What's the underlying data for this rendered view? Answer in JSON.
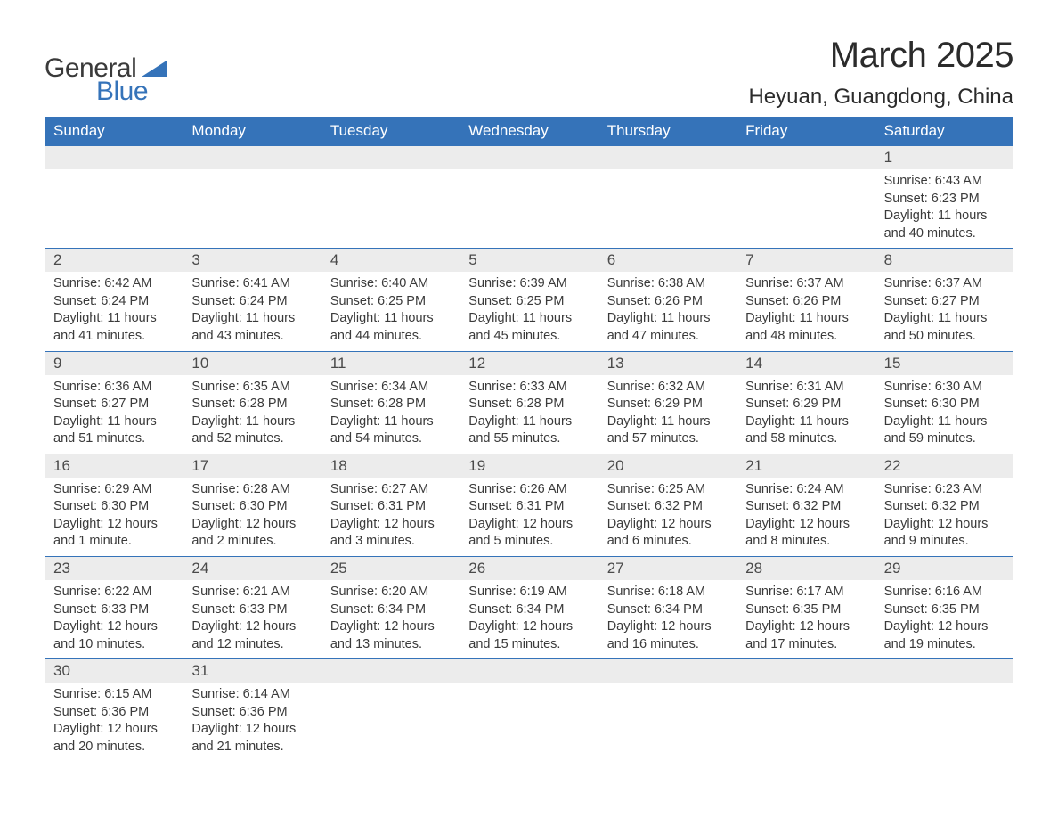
{
  "logo": {
    "word1": "General",
    "word2": "Blue",
    "text_color": "#3a3a3a",
    "accent_color": "#3573b9"
  },
  "title": "March 2025",
  "location": "Heyuan, Guangdong, China",
  "colors": {
    "header_bg": "#3573b9",
    "header_text": "#ffffff",
    "daynum_bg": "#ececec",
    "border": "#3573b9",
    "text": "#3a3a3a",
    "background": "#ffffff"
  },
  "fonts": {
    "title_size_pt": 40,
    "location_size_pt": 24,
    "weekday_size_pt": 17,
    "daynum_size_pt": 17,
    "body_size_pt": 14.5
  },
  "grid": {
    "columns": 7,
    "rows": 6
  },
  "weekdays": [
    "Sunday",
    "Monday",
    "Tuesday",
    "Wednesday",
    "Thursday",
    "Friday",
    "Saturday"
  ],
  "weeks": [
    [
      {
        "empty": true
      },
      {
        "empty": true
      },
      {
        "empty": true
      },
      {
        "empty": true
      },
      {
        "empty": true
      },
      {
        "empty": true
      },
      {
        "n": "1",
        "sunrise": "Sunrise: 6:43 AM",
        "sunset": "Sunset: 6:23 PM",
        "dl1": "Daylight: 11 hours",
        "dl2": "and 40 minutes."
      }
    ],
    [
      {
        "n": "2",
        "sunrise": "Sunrise: 6:42 AM",
        "sunset": "Sunset: 6:24 PM",
        "dl1": "Daylight: 11 hours",
        "dl2": "and 41 minutes."
      },
      {
        "n": "3",
        "sunrise": "Sunrise: 6:41 AM",
        "sunset": "Sunset: 6:24 PM",
        "dl1": "Daylight: 11 hours",
        "dl2": "and 43 minutes."
      },
      {
        "n": "4",
        "sunrise": "Sunrise: 6:40 AM",
        "sunset": "Sunset: 6:25 PM",
        "dl1": "Daylight: 11 hours",
        "dl2": "and 44 minutes."
      },
      {
        "n": "5",
        "sunrise": "Sunrise: 6:39 AM",
        "sunset": "Sunset: 6:25 PM",
        "dl1": "Daylight: 11 hours",
        "dl2": "and 45 minutes."
      },
      {
        "n": "6",
        "sunrise": "Sunrise: 6:38 AM",
        "sunset": "Sunset: 6:26 PM",
        "dl1": "Daylight: 11 hours",
        "dl2": "and 47 minutes."
      },
      {
        "n": "7",
        "sunrise": "Sunrise: 6:37 AM",
        "sunset": "Sunset: 6:26 PM",
        "dl1": "Daylight: 11 hours",
        "dl2": "and 48 minutes."
      },
      {
        "n": "8",
        "sunrise": "Sunrise: 6:37 AM",
        "sunset": "Sunset: 6:27 PM",
        "dl1": "Daylight: 11 hours",
        "dl2": "and 50 minutes."
      }
    ],
    [
      {
        "n": "9",
        "sunrise": "Sunrise: 6:36 AM",
        "sunset": "Sunset: 6:27 PM",
        "dl1": "Daylight: 11 hours",
        "dl2": "and 51 minutes."
      },
      {
        "n": "10",
        "sunrise": "Sunrise: 6:35 AM",
        "sunset": "Sunset: 6:28 PM",
        "dl1": "Daylight: 11 hours",
        "dl2": "and 52 minutes."
      },
      {
        "n": "11",
        "sunrise": "Sunrise: 6:34 AM",
        "sunset": "Sunset: 6:28 PM",
        "dl1": "Daylight: 11 hours",
        "dl2": "and 54 minutes."
      },
      {
        "n": "12",
        "sunrise": "Sunrise: 6:33 AM",
        "sunset": "Sunset: 6:28 PM",
        "dl1": "Daylight: 11 hours",
        "dl2": "and 55 minutes."
      },
      {
        "n": "13",
        "sunrise": "Sunrise: 6:32 AM",
        "sunset": "Sunset: 6:29 PM",
        "dl1": "Daylight: 11 hours",
        "dl2": "and 57 minutes."
      },
      {
        "n": "14",
        "sunrise": "Sunrise: 6:31 AM",
        "sunset": "Sunset: 6:29 PM",
        "dl1": "Daylight: 11 hours",
        "dl2": "and 58 minutes."
      },
      {
        "n": "15",
        "sunrise": "Sunrise: 6:30 AM",
        "sunset": "Sunset: 6:30 PM",
        "dl1": "Daylight: 11 hours",
        "dl2": "and 59 minutes."
      }
    ],
    [
      {
        "n": "16",
        "sunrise": "Sunrise: 6:29 AM",
        "sunset": "Sunset: 6:30 PM",
        "dl1": "Daylight: 12 hours",
        "dl2": "and 1 minute."
      },
      {
        "n": "17",
        "sunrise": "Sunrise: 6:28 AM",
        "sunset": "Sunset: 6:30 PM",
        "dl1": "Daylight: 12 hours",
        "dl2": "and 2 minutes."
      },
      {
        "n": "18",
        "sunrise": "Sunrise: 6:27 AM",
        "sunset": "Sunset: 6:31 PM",
        "dl1": "Daylight: 12 hours",
        "dl2": "and 3 minutes."
      },
      {
        "n": "19",
        "sunrise": "Sunrise: 6:26 AM",
        "sunset": "Sunset: 6:31 PM",
        "dl1": "Daylight: 12 hours",
        "dl2": "and 5 minutes."
      },
      {
        "n": "20",
        "sunrise": "Sunrise: 6:25 AM",
        "sunset": "Sunset: 6:32 PM",
        "dl1": "Daylight: 12 hours",
        "dl2": "and 6 minutes."
      },
      {
        "n": "21",
        "sunrise": "Sunrise: 6:24 AM",
        "sunset": "Sunset: 6:32 PM",
        "dl1": "Daylight: 12 hours",
        "dl2": "and 8 minutes."
      },
      {
        "n": "22",
        "sunrise": "Sunrise: 6:23 AM",
        "sunset": "Sunset: 6:32 PM",
        "dl1": "Daylight: 12 hours",
        "dl2": "and 9 minutes."
      }
    ],
    [
      {
        "n": "23",
        "sunrise": "Sunrise: 6:22 AM",
        "sunset": "Sunset: 6:33 PM",
        "dl1": "Daylight: 12 hours",
        "dl2": "and 10 minutes."
      },
      {
        "n": "24",
        "sunrise": "Sunrise: 6:21 AM",
        "sunset": "Sunset: 6:33 PM",
        "dl1": "Daylight: 12 hours",
        "dl2": "and 12 minutes."
      },
      {
        "n": "25",
        "sunrise": "Sunrise: 6:20 AM",
        "sunset": "Sunset: 6:34 PM",
        "dl1": "Daylight: 12 hours",
        "dl2": "and 13 minutes."
      },
      {
        "n": "26",
        "sunrise": "Sunrise: 6:19 AM",
        "sunset": "Sunset: 6:34 PM",
        "dl1": "Daylight: 12 hours",
        "dl2": "and 15 minutes."
      },
      {
        "n": "27",
        "sunrise": "Sunrise: 6:18 AM",
        "sunset": "Sunset: 6:34 PM",
        "dl1": "Daylight: 12 hours",
        "dl2": "and 16 minutes."
      },
      {
        "n": "28",
        "sunrise": "Sunrise: 6:17 AM",
        "sunset": "Sunset: 6:35 PM",
        "dl1": "Daylight: 12 hours",
        "dl2": "and 17 minutes."
      },
      {
        "n": "29",
        "sunrise": "Sunrise: 6:16 AM",
        "sunset": "Sunset: 6:35 PM",
        "dl1": "Daylight: 12 hours",
        "dl2": "and 19 minutes."
      }
    ],
    [
      {
        "n": "30",
        "sunrise": "Sunrise: 6:15 AM",
        "sunset": "Sunset: 6:36 PM",
        "dl1": "Daylight: 12 hours",
        "dl2": "and 20 minutes."
      },
      {
        "n": "31",
        "sunrise": "Sunrise: 6:14 AM",
        "sunset": "Sunset: 6:36 PM",
        "dl1": "Daylight: 12 hours",
        "dl2": "and 21 minutes."
      },
      {
        "empty": true
      },
      {
        "empty": true
      },
      {
        "empty": true
      },
      {
        "empty": true
      },
      {
        "empty": true
      }
    ]
  ]
}
